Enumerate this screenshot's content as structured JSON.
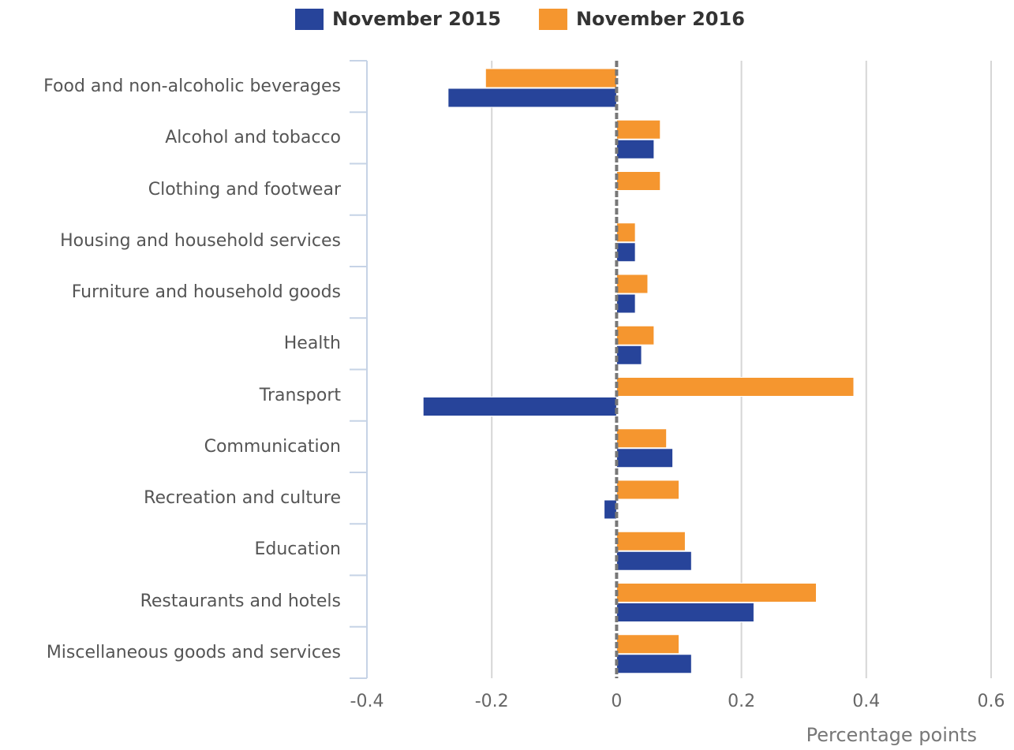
{
  "chart_data": {
    "type": "bar",
    "orientation": "horizontal",
    "x_label": "Percentage points",
    "categories": [
      "Food and non-alcoholic beverages",
      "Alcohol and tobacco",
      "Clothing and footwear",
      "Housing and household services",
      "Furniture and household goods",
      "Health",
      "Transport",
      "Communication",
      "Recreation and culture",
      "Education",
      "Restaurants and hotels",
      "Miscellaneous goods and services"
    ],
    "series": [
      {
        "name": "November 2015",
        "color": "#27449a",
        "values": [
          -0.27,
          0.06,
          0,
          0.03,
          0.03,
          0.04,
          -0.31,
          0.09,
          -0.02,
          0.12,
          0.22,
          0.12
        ]
      },
      {
        "name": "November 2016",
        "color": "#f5962f",
        "values": [
          -0.21,
          0.07,
          0.07,
          0.03,
          0.05,
          0.06,
          0.38,
          0.08,
          0.1,
          0.11,
          0.32,
          0.1
        ]
      }
    ],
    "xlim": [
      -0.4,
      0.6
    ],
    "xticks": [
      -0.4,
      -0.2,
      0,
      0.2,
      0.4,
      0.6
    ],
    "grid": true,
    "legend": "top"
  }
}
